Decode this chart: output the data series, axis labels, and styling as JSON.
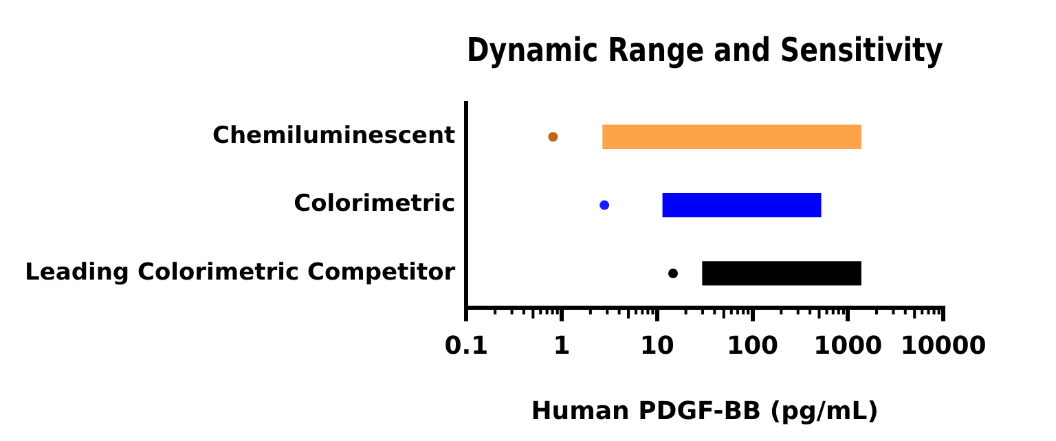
{
  "chart_data": {
    "type": "bar",
    "orientation": "horizontal",
    "title": "Dynamic Range and Sensitivity",
    "xlabel": "Human PDGF-BB (pg/mL)",
    "categories": [
      "Chemiluminescent",
      "Colorimetric",
      "Leading Colorimetric Competitor"
    ],
    "series": [
      {
        "type": "bar",
        "colors": [
          "#fda44a",
          "#0000ff",
          "#000000"
        ],
        "base": [
          2.7,
          11.5,
          30
        ],
        "values": [
          1367.3,
          508.5,
          1340
        ]
      },
      {
        "type": "scatter",
        "colors": [
          "#c0641a",
          "#1a1aff",
          "#000000"
        ],
        "x": [
          "Chemiluminescent",
          "Colorimetric",
          "Leading Colorimetric Competitor"
        ],
        "values": [
          0.81,
          2.8,
          14.7
        ]
      }
    ],
    "log": "x",
    "xlim": [
      0.1,
      10000
    ],
    "xticks": [
      0.1,
      1,
      10,
      100,
      1000,
      10000
    ],
    "grid": false,
    "legend": false,
    "marker": "circle"
  }
}
